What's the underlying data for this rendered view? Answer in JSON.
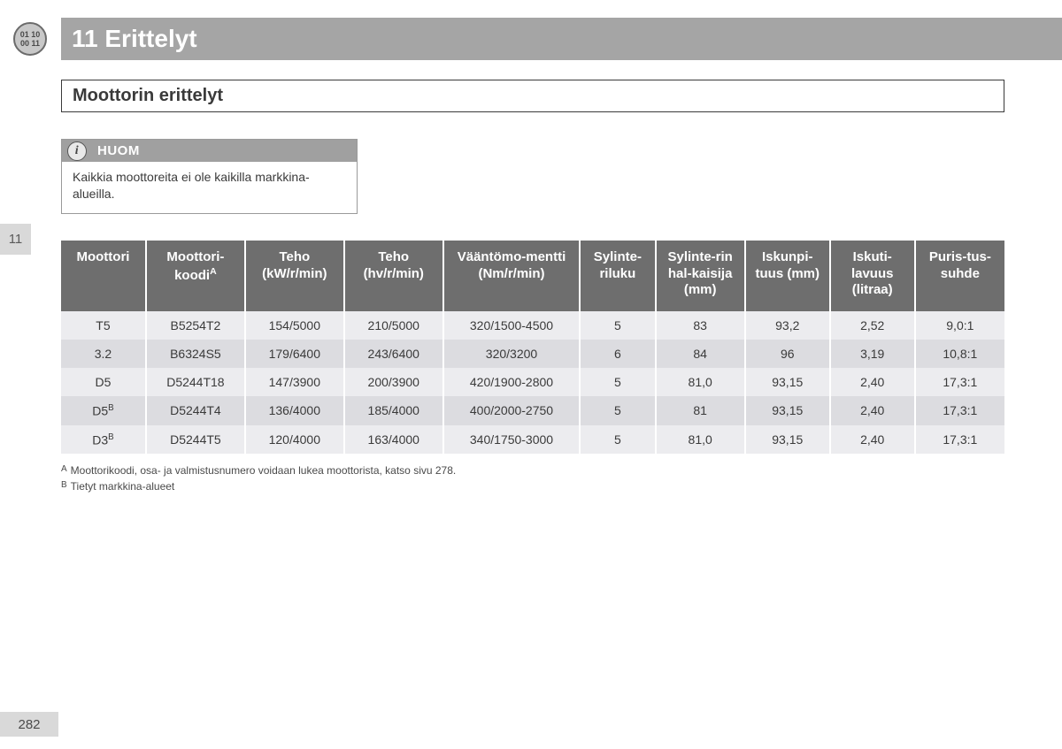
{
  "header": {
    "icon_top": "01 10",
    "icon_bottom": "00 11",
    "title": "11 Erittelyt"
  },
  "side_tab": "11",
  "section_title": "Moottorin erittelyt",
  "note": {
    "label": "HUOM",
    "text": "Kaikkia moottoreita ei ole kaikilla markkina-alueilla."
  },
  "table": {
    "col_widths_pct": [
      9,
      10.5,
      10.5,
      10.5,
      14.5,
      8,
      9.5,
      9,
      9,
      9.5
    ],
    "headers": [
      {
        "text": "Moottori"
      },
      {
        "text": "Moottori-koodi",
        "sup": "A"
      },
      {
        "text": "Teho (kW/r/min)"
      },
      {
        "text": "Teho (hv/r/min)"
      },
      {
        "text": "Vääntömo-mentti (Nm/r/min)"
      },
      {
        "text": "Sylinte-riluku"
      },
      {
        "text": "Sylinte-rin hal-kaisija (mm)"
      },
      {
        "text": "Iskunpi-tuus (mm)"
      },
      {
        "text": "Iskuti-lavuus (litraa)"
      },
      {
        "text": "Puris-tus-suhde"
      }
    ],
    "rows": [
      {
        "engine": "T5",
        "sup": "",
        "code": "B5254T2",
        "kw": "154/5000",
        "hv": "210/5000",
        "nm": "320/1500-4500",
        "cyl": "5",
        "bore": "83",
        "stroke": "93,2",
        "disp": "2,52",
        "comp": "9,0:1"
      },
      {
        "engine": "3.2",
        "sup": "",
        "code": "B6324S5",
        "kw": "179/6400",
        "hv": "243/6400",
        "nm": "320/3200",
        "cyl": "6",
        "bore": "84",
        "stroke": "96",
        "disp": "3,19",
        "comp": "10,8:1"
      },
      {
        "engine": "D5",
        "sup": "",
        "code": "D5244T18",
        "kw": "147/3900",
        "hv": "200/3900",
        "nm": "420/1900-2800",
        "cyl": "5",
        "bore": "81,0",
        "stroke": "93,15",
        "disp": "2,40",
        "comp": "17,3:1"
      },
      {
        "engine": "D5",
        "sup": "B",
        "code": "D5244T4",
        "kw": "136/4000",
        "hv": "185/4000",
        "nm": "400/2000-2750",
        "cyl": "5",
        "bore": "81",
        "stroke": "93,15",
        "disp": "2,40",
        "comp": "17,3:1"
      },
      {
        "engine": "D3",
        "sup": "B",
        "code": "D5244T5",
        "kw": "120/4000",
        "hv": "163/4000",
        "nm": "340/1750-3000",
        "cyl": "5",
        "bore": "81,0",
        "stroke": "93,15",
        "disp": "2,40",
        "comp": "17,3:1"
      }
    ]
  },
  "footnotes": [
    {
      "mark": "A",
      "text": "Moottorikoodi, osa- ja valmistusnumero voidaan lukea moottorista, katso sivu 278."
    },
    {
      "mark": "B",
      "text": "Tietyt markkina-alueet"
    }
  ],
  "page_number": "282"
}
